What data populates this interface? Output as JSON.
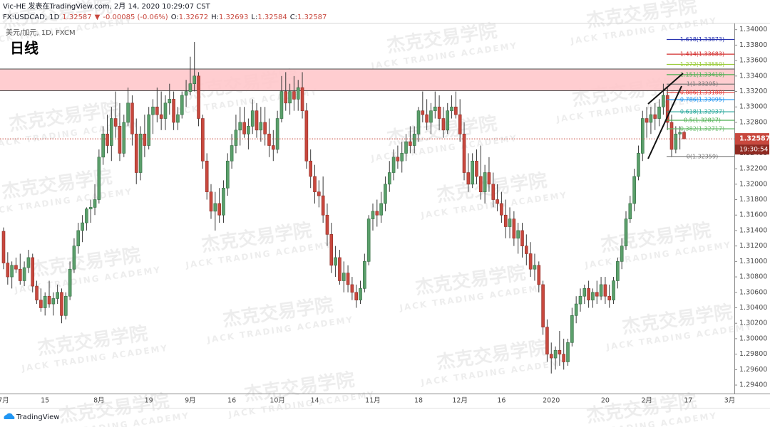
{
  "chart_data": {
    "type": "candlestick",
    "title": "日线",
    "subtitle": "美元/加元, 1D, FXCM",
    "header": {
      "author_line": "Vic-HE 发表在TradingView.com, 2月 14, 2020 10:29:07 CST",
      "legend": [
        {
          "text": "FX:USDCAD, 1D",
          "color": "#131722"
        },
        {
          "text": "1.32587",
          "color": "#c8483e"
        },
        {
          "text": "▼",
          "color": "#c8483e"
        },
        {
          "text": "-0.00085 (-0.06%)",
          "color": "#c8483e"
        },
        {
          "text": "O:",
          "color": "#131722"
        },
        {
          "text": "1.32672",
          "color": "#c8483e"
        },
        {
          "text": "H:",
          "color": "#131722"
        },
        {
          "text": "1.32693",
          "color": "#c8483e"
        },
        {
          "text": "L:",
          "color": "#131722"
        },
        {
          "text": "1.32584",
          "color": "#c8483e"
        },
        {
          "text": "C:",
          "color": "#131722"
        },
        {
          "text": "1.32587",
          "color": "#c8483e"
        }
      ]
    },
    "watermark": {
      "title": "杰克交易学院",
      "subtitle": "JACK TRADING ACADEMY"
    },
    "footer": "TradingView",
    "countdown": "19:30:54",
    "up_color": "#5b9f6b",
    "up_border": "#2f6b3f",
    "down_color": "#c8483e",
    "down_border": "#8f2a22",
    "wick_color": "#3a3a3a",
    "grid": false,
    "ylim": [
      1.2929,
      1.3408
    ],
    "yticks": [
      {
        "value": 1.294,
        "label": "1.29400"
      },
      {
        "value": 1.296,
        "label": "1.29600"
      },
      {
        "value": 1.298,
        "label": "1.29800"
      },
      {
        "value": 1.3,
        "label": "1.30000"
      },
      {
        "value": 1.302,
        "label": "1.30200"
      },
      {
        "value": 1.304,
        "label": "1.30400"
      },
      {
        "value": 1.306,
        "label": "1.30600"
      },
      {
        "value": 1.308,
        "label": "1.30800"
      },
      {
        "value": 1.31,
        "label": "1.31000"
      },
      {
        "value": 1.312,
        "label": "1.31200"
      },
      {
        "value": 1.314,
        "label": "1.31400"
      },
      {
        "value": 1.316,
        "label": "1.31600"
      },
      {
        "value": 1.318,
        "label": "1.31800"
      },
      {
        "value": 1.32,
        "label": "1.32000"
      },
      {
        "value": 1.322,
        "label": "1.32200"
      },
      {
        "value": 1.324,
        "label": "1.32400"
      },
      {
        "value": 1.326,
        "label": "1.32600"
      },
      {
        "value": 1.328,
        "label": "1.32800"
      },
      {
        "value": 1.33,
        "label": "1.33000"
      },
      {
        "value": 1.332,
        "label": "1.33200"
      },
      {
        "value": 1.334,
        "label": "1.33400"
      },
      {
        "value": 1.336,
        "label": "1.33600"
      },
      {
        "value": 1.338,
        "label": "1.33800"
      },
      {
        "value": 1.34,
        "label": "1.34000"
      }
    ],
    "resistance_zone": {
      "top": 1.3349,
      "bottom": 1.3321,
      "color": "#ffc4c8",
      "border": "#4a4a4a"
    },
    "fib_levels": [
      {
        "label": "1.618(1.33873)",
        "price": 1.33873,
        "color": "#2a35b0"
      },
      {
        "label": "1.414(1.33683)",
        "price": 1.33683,
        "color": "#d32f2f"
      },
      {
        "label": "1.272(1.33550)",
        "price": 1.3355,
        "color": "#9ccc3c"
      },
      {
        "label": "1.151(1.33418)",
        "price": 1.33418,
        "color": "#4caf50"
      },
      {
        "label": "1(1.33295)",
        "price": 1.33295,
        "color": "#787878"
      },
      {
        "label": "0.886(1.33188)",
        "price": 1.33188,
        "color": "#e53935"
      },
      {
        "label": "0.786(1.33095)",
        "price": 1.33095,
        "color": "#2196f3"
      },
      {
        "label": "0.618(1.32937)",
        "price": 1.32937,
        "color": "#26a69a"
      },
      {
        "label": "0.5(1.32827)",
        "price": 1.32827,
        "color": "#4caf50"
      },
      {
        "label": "0.382(1.32717)",
        "price": 1.32717,
        "color": "#66bb6a"
      },
      {
        "label": "0(1.32359)",
        "price": 1.32359,
        "color": "#787878"
      }
    ],
    "categories": [
      "7月",
      null,
      null,
      null,
      null,
      null,
      null,
      null,
      null,
      null,
      "15",
      null,
      null,
      null,
      null,
      null,
      null,
      null,
      null,
      null,
      null,
      null,
      null,
      "8月",
      null,
      null,
      null,
      null,
      null,
      null,
      null,
      null,
      null,
      null,
      null,
      "19",
      null,
      null,
      null,
      null,
      null,
      null,
      null,
      null,
      null,
      "9月",
      null,
      null,
      null,
      null,
      null,
      null,
      null,
      null,
      null,
      "16",
      null,
      null,
      null,
      null,
      null,
      null,
      null,
      null,
      null,
      null,
      "10月",
      null,
      null,
      null,
      null,
      null,
      null,
      null,
      null,
      "14",
      null,
      null,
      null,
      null,
      null,
      null,
      null,
      null,
      null,
      null,
      null,
      null,
      null,
      "11月",
      null,
      null,
      null,
      null,
      null,
      null,
      null,
      null,
      null,
      null,
      "18",
      null,
      null,
      null,
      null,
      null,
      null,
      null,
      null,
      null,
      "12月",
      null,
      null,
      null,
      null,
      null,
      null,
      null,
      null,
      null,
      "16",
      null,
      null,
      null,
      null,
      null,
      null,
      null,
      null,
      null,
      null,
      null,
      "2020",
      null,
      null,
      null,
      null,
      null,
      null,
      null,
      null,
      null,
      null,
      null,
      null,
      "20",
      null,
      null,
      null,
      null,
      null,
      null,
      null,
      null,
      null,
      "2月",
      null,
      null,
      null,
      null,
      null,
      null,
      null,
      null,
      null,
      "17",
      null,
      null,
      null,
      null,
      null,
      null,
      null,
      null,
      null,
      "3月"
    ],
    "ohlc": [
      [
        1.3139,
        1.3144,
        1.309,
        1.3098
      ],
      [
        1.3098,
        1.3112,
        1.307,
        1.308
      ],
      [
        1.308,
        1.31,
        1.3065,
        1.3095
      ],
      [
        1.3095,
        1.3105,
        1.3085,
        1.309
      ],
      [
        1.309,
        1.311,
        1.307,
        1.3075
      ],
      [
        1.3075,
        1.31,
        1.3068,
        1.3092
      ],
      [
        1.3092,
        1.3115,
        1.3085,
        1.3105
      ],
      [
        1.3105,
        1.311,
        1.306,
        1.3068
      ],
      [
        1.3068,
        1.3075,
        1.3045,
        1.305
      ],
      [
        1.305,
        1.3065,
        1.3035,
        1.304
      ],
      [
        1.304,
        1.306,
        1.303,
        1.3055
      ],
      [
        1.3055,
        1.3075,
        1.304,
        1.3045
      ],
      [
        1.3045,
        1.306,
        1.303,
        1.3052
      ],
      [
        1.3052,
        1.307,
        1.3045,
        1.306
      ],
      [
        1.306,
        1.3065,
        1.302,
        1.303
      ],
      [
        1.303,
        1.306,
        1.3025,
        1.3055
      ],
      [
        1.3055,
        1.31,
        1.305,
        1.309
      ],
      [
        1.309,
        1.313,
        1.3085,
        1.312
      ],
      [
        1.312,
        1.315,
        1.311,
        1.314
      ],
      [
        1.314,
        1.316,
        1.3125,
        1.315
      ],
      [
        1.315,
        1.317,
        1.314,
        1.3168
      ],
      [
        1.3168,
        1.318,
        1.315,
        1.317
      ],
      [
        1.317,
        1.32,
        1.316,
        1.318
      ],
      [
        1.318,
        1.3245,
        1.3175,
        1.3235
      ],
      [
        1.3235,
        1.3275,
        1.3225,
        1.3265
      ],
      [
        1.3265,
        1.329,
        1.324,
        1.325
      ],
      [
        1.325,
        1.33,
        1.323,
        1.3285
      ],
      [
        1.3285,
        1.332,
        1.326,
        1.3275
      ],
      [
        1.3275,
        1.3305,
        1.323,
        1.324
      ],
      [
        1.324,
        1.329,
        1.3235,
        1.328
      ],
      [
        1.328,
        1.3325,
        1.3275,
        1.3305
      ],
      [
        1.3305,
        1.3315,
        1.325,
        1.3265
      ],
      [
        1.3265,
        1.3285,
        1.32,
        1.3215
      ],
      [
        1.3215,
        1.3275,
        1.3205,
        1.3265
      ],
      [
        1.3265,
        1.329,
        1.3235,
        1.325
      ],
      [
        1.325,
        1.33,
        1.3245,
        1.329
      ],
      [
        1.329,
        1.331,
        1.3265,
        1.33
      ],
      [
        1.33,
        1.3325,
        1.328,
        1.329
      ],
      [
        1.329,
        1.332,
        1.327,
        1.3285
      ],
      [
        1.3285,
        1.3315,
        1.327,
        1.3305
      ],
      [
        1.3305,
        1.333,
        1.329,
        1.331
      ],
      [
        1.331,
        1.332,
        1.327,
        1.328
      ],
      [
        1.328,
        1.33,
        1.327,
        1.329
      ],
      [
        1.329,
        1.332,
        1.3285,
        1.3315
      ],
      [
        1.3315,
        1.3335,
        1.33,
        1.332
      ],
      [
        1.332,
        1.3365,
        1.3315,
        1.333
      ],
      [
        1.333,
        1.3384,
        1.332,
        1.334
      ],
      [
        1.334,
        1.3345,
        1.3275,
        1.3285
      ],
      [
        1.3285,
        1.329,
        1.322,
        1.323
      ],
      [
        1.323,
        1.324,
        1.318,
        1.319
      ],
      [
        1.319,
        1.32,
        1.3155,
        1.3165
      ],
      [
        1.3165,
        1.319,
        1.314,
        1.3175
      ],
      [
        1.3175,
        1.3195,
        1.315,
        1.316
      ],
      [
        1.316,
        1.3205,
        1.315,
        1.3195
      ],
      [
        1.3195,
        1.324,
        1.3185,
        1.323
      ],
      [
        1.323,
        1.3265,
        1.322,
        1.325
      ],
      [
        1.325,
        1.329,
        1.324,
        1.327
      ],
      [
        1.327,
        1.33,
        1.325,
        1.328
      ],
      [
        1.328,
        1.33,
        1.326,
        1.3265
      ],
      [
        1.3265,
        1.3285,
        1.3245,
        1.3275
      ],
      [
        1.3275,
        1.331,
        1.3265,
        1.3295
      ],
      [
        1.3295,
        1.3305,
        1.326,
        1.327
      ],
      [
        1.327,
        1.33,
        1.3255,
        1.328
      ],
      [
        1.328,
        1.33,
        1.325,
        1.3265
      ],
      [
        1.3265,
        1.3285,
        1.3235,
        1.325
      ],
      [
        1.325,
        1.327,
        1.323,
        1.3245
      ],
      [
        1.3245,
        1.3295,
        1.324,
        1.3285
      ],
      [
        1.3285,
        1.334,
        1.328,
        1.332
      ],
      [
        1.332,
        1.3345,
        1.3295,
        1.3305
      ],
      [
        1.3305,
        1.333,
        1.329,
        1.332
      ],
      [
        1.332,
        1.334,
        1.3295,
        1.331
      ],
      [
        1.331,
        1.3335,
        1.3295,
        1.3325
      ],
      [
        1.3325,
        1.3345,
        1.3285,
        1.3295
      ],
      [
        1.3295,
        1.3305,
        1.322,
        1.323
      ],
      [
        1.323,
        1.3245,
        1.3195,
        1.321
      ],
      [
        1.321,
        1.3225,
        1.3175,
        1.319
      ],
      [
        1.319,
        1.3205,
        1.317,
        1.3185
      ],
      [
        1.3185,
        1.321,
        1.315,
        1.316
      ],
      [
        1.316,
        1.3175,
        1.312,
        1.3135
      ],
      [
        1.3135,
        1.315,
        1.3085,
        1.3095
      ],
      [
        1.3095,
        1.312,
        1.308,
        1.3105
      ],
      [
        1.3105,
        1.3115,
        1.307,
        1.3075
      ],
      [
        1.3075,
        1.31,
        1.306,
        1.3085
      ],
      [
        1.3085,
        1.3095,
        1.306,
        1.307
      ],
      [
        1.307,
        1.308,
        1.305,
        1.306
      ],
      [
        1.306,
        1.307,
        1.304,
        1.305
      ],
      [
        1.305,
        1.3075,
        1.3045,
        1.3065
      ],
      [
        1.3065,
        1.311,
        1.306,
        1.31
      ],
      [
        1.31,
        1.316,
        1.3095,
        1.3155
      ],
      [
        1.3155,
        1.3175,
        1.314,
        1.3165
      ],
      [
        1.3165,
        1.318,
        1.3145,
        1.316
      ],
      [
        1.316,
        1.319,
        1.315,
        1.3175
      ],
      [
        1.3175,
        1.321,
        1.3165,
        1.32
      ],
      [
        1.32,
        1.323,
        1.319,
        1.3215
      ],
      [
        1.3215,
        1.3245,
        1.3205,
        1.3235
      ],
      [
        1.3235,
        1.325,
        1.322,
        1.323
      ],
      [
        1.323,
        1.3255,
        1.3215,
        1.324
      ],
      [
        1.324,
        1.3265,
        1.323,
        1.3255
      ],
      [
        1.3255,
        1.3275,
        1.324,
        1.325
      ],
      [
        1.325,
        1.3275,
        1.324,
        1.3265
      ],
      [
        1.3265,
        1.33,
        1.3255,
        1.3295
      ],
      [
        1.3295,
        1.332,
        1.328,
        1.329
      ],
      [
        1.329,
        1.331,
        1.327,
        1.328
      ],
      [
        1.328,
        1.3305,
        1.3265,
        1.3295
      ],
      [
        1.3295,
        1.332,
        1.3285,
        1.33
      ],
      [
        1.33,
        1.3315,
        1.327,
        1.3285
      ],
      [
        1.3285,
        1.33,
        1.326,
        1.327
      ],
      [
        1.327,
        1.3305,
        1.3265,
        1.3295
      ],
      [
        1.3295,
        1.3315,
        1.3285,
        1.33
      ],
      [
        1.33,
        1.332,
        1.3285,
        1.329
      ],
      [
        1.329,
        1.331,
        1.3255,
        1.3265
      ],
      [
        1.3265,
        1.328,
        1.3205,
        1.3215
      ],
      [
        1.3215,
        1.324,
        1.319,
        1.32
      ],
      [
        1.32,
        1.324,
        1.3195,
        1.323
      ],
      [
        1.323,
        1.3245,
        1.32,
        1.321
      ],
      [
        1.321,
        1.325,
        1.318,
        1.319
      ],
      [
        1.319,
        1.3225,
        1.3175,
        1.3215
      ],
      [
        1.3215,
        1.3235,
        1.319,
        1.32
      ],
      [
        1.32,
        1.3215,
        1.317,
        1.318
      ],
      [
        1.318,
        1.32,
        1.3165,
        1.3175
      ],
      [
        1.3175,
        1.319,
        1.315,
        1.316
      ],
      [
        1.316,
        1.318,
        1.313,
        1.3145
      ],
      [
        1.3145,
        1.317,
        1.313,
        1.3155
      ],
      [
        1.3155,
        1.3165,
        1.312,
        1.313
      ],
      [
        1.313,
        1.315,
        1.311,
        1.314
      ],
      [
        1.314,
        1.315,
        1.3105,
        1.312
      ],
      [
        1.312,
        1.3135,
        1.3095,
        1.311
      ],
      [
        1.311,
        1.3125,
        1.308,
        1.309
      ],
      [
        1.309,
        1.311,
        1.3075,
        1.3095
      ],
      [
        1.3095,
        1.31,
        1.306,
        1.307
      ],
      [
        1.307,
        1.3075,
        1.3005,
        1.3015
      ],
      [
        1.3015,
        1.3025,
        1.297,
        1.298
      ],
      [
        1.298,
        1.2995,
        1.2955,
        1.2975
      ],
      [
        1.2975,
        1.299,
        1.296,
        1.2985
      ],
      [
        1.2985,
        1.301,
        1.2965,
        1.298
      ],
      [
        1.298,
        1.3,
        1.296,
        1.297
      ],
      [
        1.297,
        1.3,
        1.2965,
        1.2995
      ],
      [
        1.2995,
        1.304,
        1.299,
        1.303
      ],
      [
        1.303,
        1.3055,
        1.302,
        1.3045
      ],
      [
        1.3045,
        1.3065,
        1.3035,
        1.3055
      ],
      [
        1.3055,
        1.307,
        1.3045,
        1.3065
      ],
      [
        1.3065,
        1.3075,
        1.304,
        1.305
      ],
      [
        1.305,
        1.3065,
        1.304,
        1.306
      ],
      [
        1.306,
        1.3075,
        1.3045,
        1.3055
      ],
      [
        1.3055,
        1.308,
        1.305,
        1.307
      ],
      [
        1.307,
        1.308,
        1.3045,
        1.3055
      ],
      [
        1.3055,
        1.307,
        1.304,
        1.305
      ],
      [
        1.305,
        1.308,
        1.3045,
        1.3075
      ],
      [
        1.3075,
        1.3105,
        1.3065,
        1.31
      ],
      [
        1.31,
        1.313,
        1.309,
        1.312
      ],
      [
        1.312,
        1.3165,
        1.3115,
        1.3155
      ],
      [
        1.3155,
        1.3185,
        1.315,
        1.3175
      ],
      [
        1.3175,
        1.322,
        1.3165,
        1.321
      ],
      [
        1.321,
        1.325,
        1.3205,
        1.324
      ],
      [
        1.324,
        1.3295,
        1.323,
        1.3285
      ],
      [
        1.3285,
        1.33,
        1.326,
        1.328
      ],
      [
        1.328,
        1.33,
        1.3265,
        1.329
      ],
      [
        1.329,
        1.3305,
        1.327,
        1.3285
      ],
      [
        1.3285,
        1.331,
        1.3275,
        1.33
      ],
      [
        1.33,
        1.333,
        1.329,
        1.3315
      ],
      [
        1.3315,
        1.3325,
        1.327,
        1.328
      ],
      [
        1.328,
        1.329,
        1.3235,
        1.3245
      ],
      [
        1.3245,
        1.3275,
        1.324,
        1.3265
      ],
      [
        1.3265,
        1.3275,
        1.3245,
        1.3267
      ],
      [
        1.32672,
        1.32693,
        1.32584,
        1.32587
      ],
      null,
      null,
      null,
      null,
      null,
      null,
      null,
      null,
      null,
      null,
      null
    ]
  }
}
